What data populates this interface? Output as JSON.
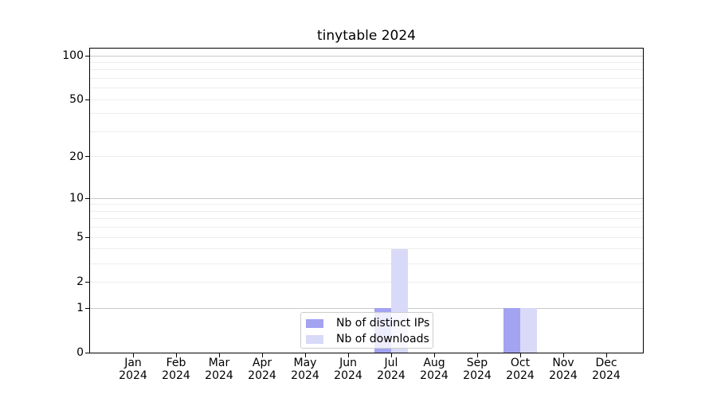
{
  "chart_data": {
    "type": "bar",
    "title": "tinytable 2024",
    "x_axis": {
      "categories": [
        {
          "month": "Jan",
          "year": "2024"
        },
        {
          "month": "Feb",
          "year": "2024"
        },
        {
          "month": "Mar",
          "year": "2024"
        },
        {
          "month": "Apr",
          "year": "2024"
        },
        {
          "month": "May",
          "year": "2024"
        },
        {
          "month": "Jun",
          "year": "2024"
        },
        {
          "month": "Jul",
          "year": "2024"
        },
        {
          "month": "Aug",
          "year": "2024"
        },
        {
          "month": "Sep",
          "year": "2024"
        },
        {
          "month": "Oct",
          "year": "2024"
        },
        {
          "month": "Nov",
          "year": "2024"
        },
        {
          "month": "Dec",
          "year": "2024"
        }
      ]
    },
    "y_axis": {
      "scale": "log1p",
      "ylim": [
        0,
        113
      ],
      "ticks": [
        {
          "value": 0,
          "label": "0"
        },
        {
          "value": 1,
          "label": "1"
        },
        {
          "value": 2,
          "label": "2"
        },
        {
          "value": 5,
          "label": "5"
        },
        {
          "value": 10,
          "label": "10"
        },
        {
          "value": 20,
          "label": "20"
        },
        {
          "value": 50,
          "label": "50"
        },
        {
          "value": 100,
          "label": "100"
        }
      ],
      "major_gridlines": [
        1,
        10,
        100
      ],
      "minor_gridlines": [
        2,
        3,
        4,
        5,
        6,
        7,
        8,
        9,
        20,
        30,
        40,
        50,
        60,
        70,
        80,
        90
      ]
    },
    "series": [
      {
        "key": "distinct-ips",
        "name": "Nb of distinct IPs",
        "color": "#a3a3f2",
        "values": [
          0,
          0,
          0,
          0,
          0,
          0,
          1,
          0,
          0,
          1,
          0,
          0
        ]
      },
      {
        "key": "downloads",
        "name": "Nb of downloads",
        "color": "#d9d9f8",
        "values": [
          0,
          0,
          0,
          0,
          0,
          0,
          4,
          0,
          0,
          1,
          0,
          0
        ]
      }
    ],
    "legend": {
      "position": "bottom-center",
      "items": [
        "Nb of distinct IPs",
        "Nb of downloads"
      ]
    },
    "colors": {
      "major_grid": "#c9c9c9",
      "minor_grid": "#ededed",
      "spine": "#000000",
      "text": "#000000"
    }
  }
}
